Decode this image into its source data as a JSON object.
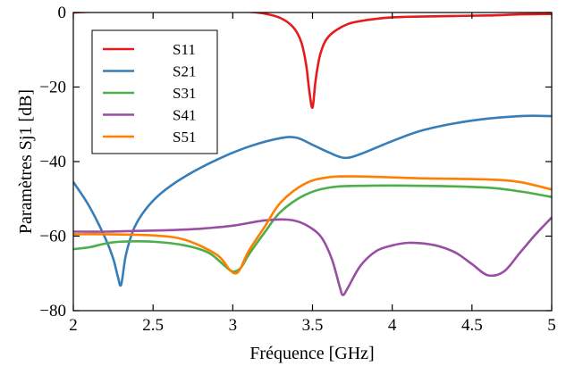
{
  "chart_data": {
    "type": "line",
    "title": "",
    "xlabel": "Fréquence [GHz]",
    "ylabel": "Paramètres Sj1 [dB]",
    "xlim": [
      2,
      5
    ],
    "ylim": [
      -80,
      0
    ],
    "xticks": [
      2,
      2.5,
      3,
      3.5,
      4,
      4.5,
      5
    ],
    "xtick_labels": [
      "2",
      "2.5",
      "3",
      "3.5",
      "4",
      "4.5",
      "5"
    ],
    "yticks": [
      0,
      -20,
      -40,
      -60,
      -80
    ],
    "ytick_labels": [
      "0",
      "−20",
      "−40",
      "−60",
      "−80"
    ],
    "grid": false,
    "legend_position": "top-left",
    "series": [
      {
        "name": "S11",
        "color": "#e41a1c",
        "x": [
          2.0,
          2.2,
          2.5,
          2.8,
          3.0,
          3.1,
          3.2,
          3.3,
          3.38,
          3.43,
          3.46,
          3.48,
          3.5,
          3.52,
          3.55,
          3.6,
          3.7,
          3.8,
          4.0,
          4.3,
          4.6,
          4.8,
          5.0
        ],
        "y": [
          0.0,
          0.3,
          0.5,
          0.7,
          0.5,
          0.2,
          -0.3,
          -1.5,
          -4.0,
          -8.0,
          -14.0,
          -21.0,
          -25.5,
          -18.0,
          -11.0,
          -6.5,
          -3.5,
          -2.3,
          -1.3,
          -1.0,
          -0.8,
          -0.5,
          -0.4
        ]
      },
      {
        "name": "S21",
        "color": "#377eb8",
        "x": [
          2.0,
          2.1,
          2.2,
          2.25,
          2.28,
          2.3,
          2.33,
          2.38,
          2.45,
          2.55,
          2.7,
          2.9,
          3.1,
          3.3,
          3.4,
          3.5,
          3.6,
          3.7,
          3.8,
          4.0,
          4.2,
          4.5,
          4.8,
          5.0
        ],
        "y": [
          -45.5,
          -52.0,
          -60.5,
          -66.0,
          -71.0,
          -73.0,
          -65.0,
          -58.0,
          -53.0,
          -48.5,
          -44.0,
          -39.5,
          -36.0,
          -33.7,
          -33.6,
          -35.5,
          -37.5,
          -39.0,
          -38.0,
          -34.5,
          -31.5,
          -29.0,
          -27.8,
          -27.8
        ]
      },
      {
        "name": "S31",
        "color": "#4daf4a",
        "x": [
          2.0,
          2.1,
          2.2,
          2.3,
          2.5,
          2.7,
          2.85,
          2.95,
          3.0,
          3.05,
          3.1,
          3.2,
          3.3,
          3.45,
          3.6,
          3.8,
          4.2,
          4.6,
          4.8,
          5.0
        ],
        "y": [
          -63.5,
          -63.0,
          -62.0,
          -61.5,
          -61.5,
          -62.5,
          -64.5,
          -68.0,
          -69.5,
          -68.5,
          -65.0,
          -59.0,
          -53.5,
          -49.0,
          -47.0,
          -46.5,
          -46.5,
          -47.0,
          -48.0,
          -49.5
        ]
      },
      {
        "name": "S41",
        "color": "#984ea3",
        "x": [
          2.0,
          2.2,
          2.4,
          2.6,
          2.8,
          3.0,
          3.2,
          3.35,
          3.45,
          3.55,
          3.62,
          3.67,
          3.69,
          3.72,
          3.8,
          3.9,
          4.0,
          4.1,
          4.2,
          4.3,
          4.4,
          4.5,
          4.6,
          4.7,
          4.8,
          4.9,
          5.0
        ],
        "y": [
          -58.8,
          -58.8,
          -58.6,
          -58.4,
          -58.0,
          -57.2,
          -55.8,
          -55.6,
          -56.8,
          -60.0,
          -66.0,
          -73.5,
          -75.8,
          -74.0,
          -68.0,
          -64.0,
          -62.5,
          -61.8,
          -62.0,
          -62.8,
          -64.5,
          -67.5,
          -70.5,
          -69.5,
          -64.5,
          -59.5,
          -55.0
        ]
      },
      {
        "name": "S51",
        "color": "#ff7f00",
        "x": [
          2.0,
          2.2,
          2.5,
          2.7,
          2.9,
          2.98,
          3.02,
          3.05,
          3.1,
          3.2,
          3.3,
          3.45,
          3.6,
          3.8,
          4.2,
          4.6,
          4.8,
          5.0
        ],
        "y": [
          -59.5,
          -59.5,
          -59.8,
          -61.0,
          -65.0,
          -69.0,
          -70.0,
          -68.5,
          -64.0,
          -57.5,
          -51.0,
          -46.0,
          -44.2,
          -44.0,
          -44.5,
          -44.8,
          -45.5,
          -47.5
        ]
      }
    ]
  }
}
